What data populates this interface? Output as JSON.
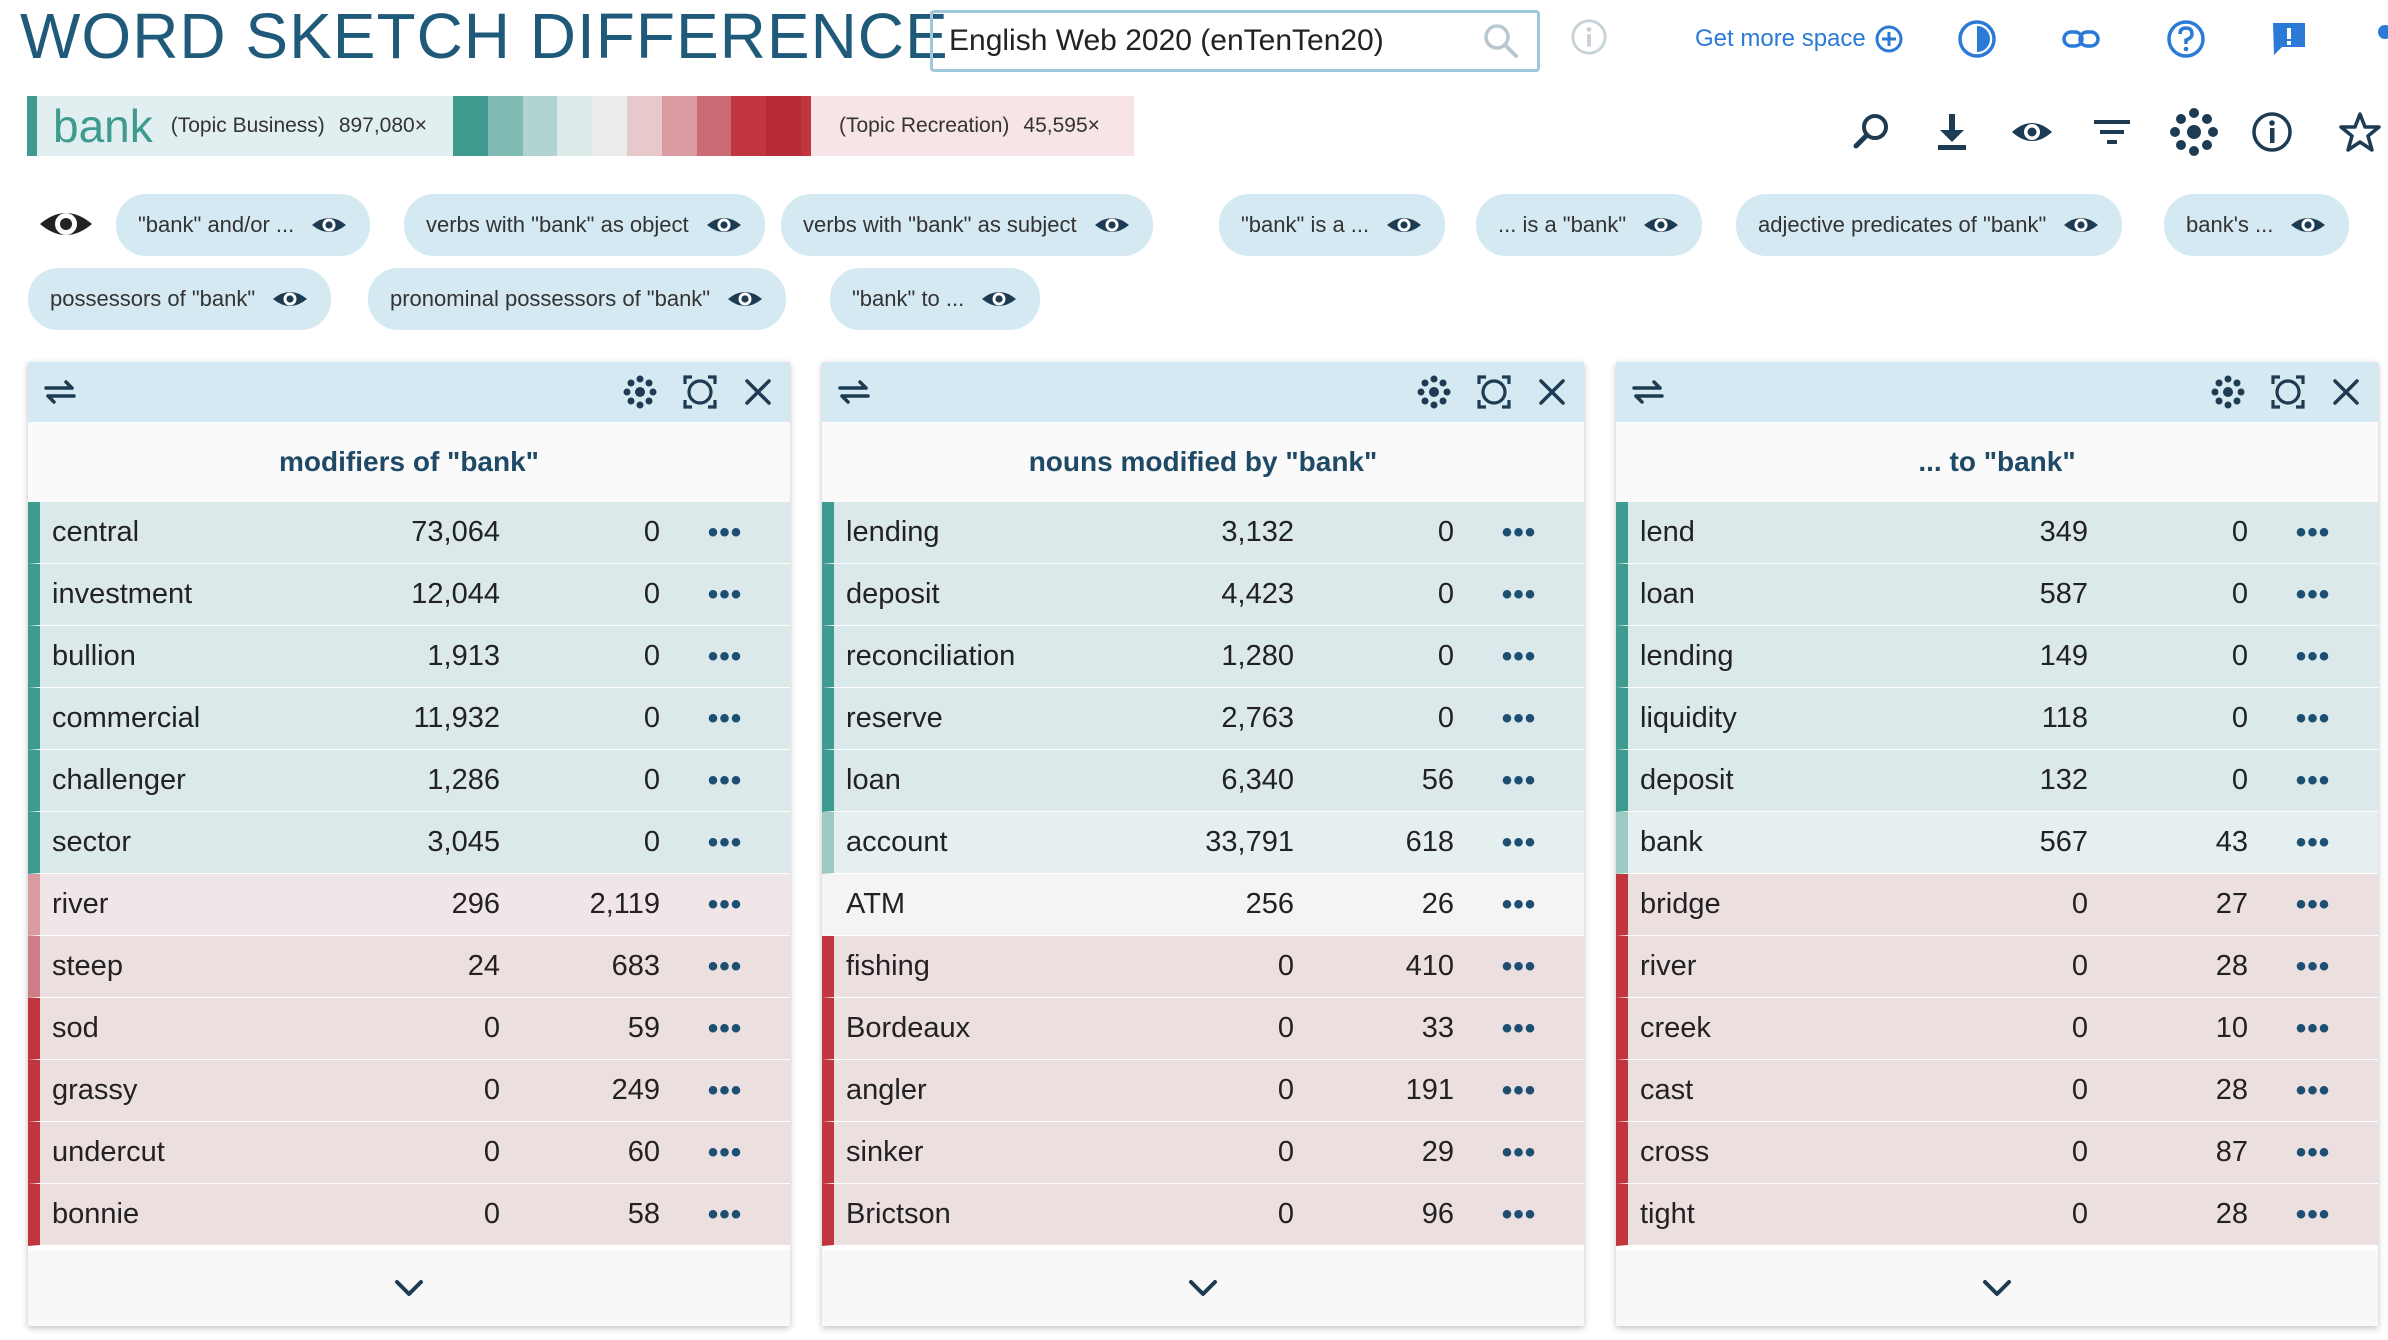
{
  "app": {
    "title": "WORD SKETCH DIFFERENCE"
  },
  "corpus": {
    "name": "English Web 2020 (enTenTen20)"
  },
  "header": {
    "get_more_space": "Get more space"
  },
  "lemma": {
    "word": "bank",
    "left_topic": "(Topic Business)",
    "left_freq": "897,080×",
    "right_topic": "(Topic Recreation)",
    "right_freq": "45,595×",
    "gradient_colors": [
      "#3f9a8f",
      "#7fbab3",
      "#b2d4d0",
      "#dbe9e8",
      "#ececec",
      "#e7c9cc",
      "#d99ba1",
      "#cc6b74",
      "#c1353f",
      "#b52a35"
    ]
  },
  "colors": {
    "accent": "#1f5a7a",
    "teal_strong": "#3f9a8f",
    "teal_light": "#9fcac4",
    "red_strong": "#c1353f",
    "red_light": "#d99ba1",
    "row_teal": "#dce9ea",
    "row_teal_light": "#e6eff0",
    "row_neutral": "#f4f4f4",
    "row_red": "#ecdfe0",
    "row_red_alt": "#f1e6e7"
  },
  "chips": [
    {
      "label": "\"bank\" and/or ..."
    },
    {
      "label": "verbs with \"bank\" as object"
    },
    {
      "label": "verbs with \"bank\" as subject"
    },
    {
      "label": "\"bank\" is a ..."
    },
    {
      "label": "... is a \"bank\""
    },
    {
      "label": "adjective predicates of \"bank\""
    },
    {
      "label": "bank's ..."
    },
    {
      "label": "possessors of \"bank\""
    },
    {
      "label": "pronominal possessors of \"bank\""
    },
    {
      "label": "\"bank\" to ..."
    }
  ],
  "panels": [
    {
      "title": "modifiers of \"bank\"",
      "rows": [
        {
          "word": "central",
          "v1": "73,064",
          "v2": "0",
          "tone": "teal"
        },
        {
          "word": "investment",
          "v1": "12,044",
          "v2": "0",
          "tone": "teal"
        },
        {
          "word": "bullion",
          "v1": "1,913",
          "v2": "0",
          "tone": "teal"
        },
        {
          "word": "commercial",
          "v1": "11,932",
          "v2": "0",
          "tone": "teal"
        },
        {
          "word": "challenger",
          "v1": "1,286",
          "v2": "0",
          "tone": "teal"
        },
        {
          "word": "sector",
          "v1": "3,045",
          "v2": "0",
          "tone": "teal"
        },
        {
          "word": "river",
          "v1": "296",
          "v2": "2,119",
          "tone": "red_light"
        },
        {
          "word": "steep",
          "v1": "24",
          "v2": "683",
          "tone": "red_mid"
        },
        {
          "word": "sod",
          "v1": "0",
          "v2": "59",
          "tone": "red"
        },
        {
          "word": "grassy",
          "v1": "0",
          "v2": "249",
          "tone": "red"
        },
        {
          "word": "undercut",
          "v1": "0",
          "v2": "60",
          "tone": "red"
        },
        {
          "word": "bonnie",
          "v1": "0",
          "v2": "58",
          "tone": "red"
        }
      ]
    },
    {
      "title": "nouns modified by \"bank\"",
      "rows": [
        {
          "word": "lending",
          "v1": "3,132",
          "v2": "0",
          "tone": "teal"
        },
        {
          "word": "deposit",
          "v1": "4,423",
          "v2": "0",
          "tone": "teal"
        },
        {
          "word": "reconciliation",
          "v1": "1,280",
          "v2": "0",
          "tone": "teal"
        },
        {
          "word": "reserve",
          "v1": "2,763",
          "v2": "0",
          "tone": "teal"
        },
        {
          "word": "loan",
          "v1": "6,340",
          "v2": "56",
          "tone": "teal"
        },
        {
          "word": "account",
          "v1": "33,791",
          "v2": "618",
          "tone": "teal_light"
        },
        {
          "word": "ATM",
          "v1": "256",
          "v2": "26",
          "tone": "neutral"
        },
        {
          "word": "fishing",
          "v1": "0",
          "v2": "410",
          "tone": "red"
        },
        {
          "word": "Bordeaux",
          "v1": "0",
          "v2": "33",
          "tone": "red"
        },
        {
          "word": "angler",
          "v1": "0",
          "v2": "191",
          "tone": "red"
        },
        {
          "word": "sinker",
          "v1": "0",
          "v2": "29",
          "tone": "red"
        },
        {
          "word": "Brictson",
          "v1": "0",
          "v2": "96",
          "tone": "red"
        }
      ]
    },
    {
      "title": "... to \"bank\"",
      "rows": [
        {
          "word": "lend",
          "v1": "349",
          "v2": "0",
          "tone": "teal"
        },
        {
          "word": "loan",
          "v1": "587",
          "v2": "0",
          "tone": "teal"
        },
        {
          "word": "lending",
          "v1": "149",
          "v2": "0",
          "tone": "teal"
        },
        {
          "word": "liquidity",
          "v1": "118",
          "v2": "0",
          "tone": "teal"
        },
        {
          "word": "deposit",
          "v1": "132",
          "v2": "0",
          "tone": "teal"
        },
        {
          "word": "bank",
          "v1": "567",
          "v2": "43",
          "tone": "teal_light"
        },
        {
          "word": "bridge",
          "v1": "0",
          "v2": "27",
          "tone": "red"
        },
        {
          "word": "river",
          "v1": "0",
          "v2": "28",
          "tone": "red"
        },
        {
          "word": "creek",
          "v1": "0",
          "v2": "10",
          "tone": "red"
        },
        {
          "word": "cast",
          "v1": "0",
          "v2": "28",
          "tone": "red"
        },
        {
          "word": "cross",
          "v1": "0",
          "v2": "87",
          "tone": "red"
        },
        {
          "word": "tight",
          "v1": "0",
          "v2": "28",
          "tone": "red"
        }
      ]
    }
  ]
}
